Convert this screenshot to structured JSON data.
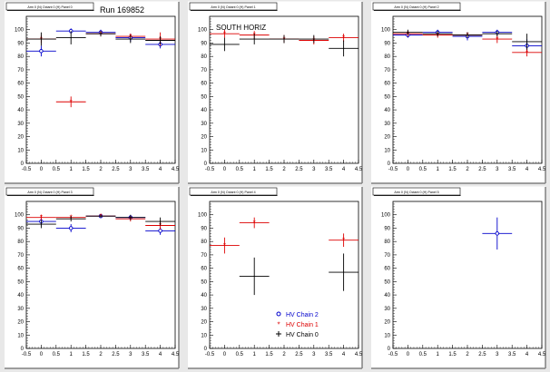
{
  "run_label": "Run 169852",
  "south_label": "SOUTH HORIZ",
  "legend": [
    {
      "label": "HV Chain 2",
      "color": "#0000cc",
      "marker": "circle"
    },
    {
      "label": "HV Chain 1",
      "color": "#dd0000",
      "marker": "star"
    },
    {
      "label": "HV Chain 0",
      "color": "#000000",
      "marker": "plus"
    }
  ],
  "colors": {
    "chain2": "#0000cc",
    "chain1": "#dd0000",
    "chain0": "#000000",
    "background": "#e8e8e8",
    "pad": "#ffffff"
  },
  "chart_data": [
    {
      "type": "scatter",
      "title": "Arm 0 (N) Octant 0 (H) Panel 0",
      "xlim": [
        -0.5,
        4.5
      ],
      "ylim": [
        0,
        110
      ],
      "xticks": [
        -0.5,
        0,
        0.5,
        1,
        1.5,
        2,
        2.5,
        3,
        3.5,
        4,
        4.5
      ],
      "yticks": [
        0,
        10,
        20,
        30,
        40,
        50,
        60,
        70,
        80,
        90,
        100
      ],
      "series": [
        {
          "color": "#0000cc",
          "marker": "circle",
          "points": [
            {
              "x": 0,
              "y": 84,
              "ey": 4
            },
            {
              "x": 1,
              "y": 99,
              "ey": 2
            },
            {
              "x": 2,
              "y": 98,
              "ey": 2
            },
            {
              "x": 3,
              "y": 94,
              "ey": 3
            },
            {
              "x": 4,
              "y": 89,
              "ey": 3
            }
          ]
        },
        {
          "color": "#dd0000",
          "marker": "star",
          "points": [
            {
              "x": 0,
              "y": 93,
              "ey": 3
            },
            {
              "x": 1,
              "y": 46,
              "ey": 4
            },
            {
              "x": 2,
              "y": 97,
              "ey": 2
            },
            {
              "x": 3,
              "y": 95,
              "ey": 2
            },
            {
              "x": 4,
              "y": 93,
              "ey": 5
            }
          ]
        },
        {
          "color": "#000000",
          "marker": "plus",
          "points": [
            {
              "x": 0,
              "y": 93,
              "ey": 5
            },
            {
              "x": 1,
              "y": 94,
              "ey": 5
            },
            {
              "x": 2,
              "y": 97,
              "ey": 2
            },
            {
              "x": 3,
              "y": 93,
              "ey": 3
            },
            {
              "x": 4,
              "y": 92,
              "ey": 3
            }
          ]
        }
      ]
    },
    {
      "type": "scatter",
      "title": "Arm 0 (N) Octant 0 (H) Panel 1",
      "xlim": [
        -0.5,
        4.5
      ],
      "ylim": [
        0,
        110
      ],
      "xticks": [
        -0.5,
        0,
        0.5,
        1,
        1.5,
        2,
        2.5,
        3,
        3.5,
        4,
        4.5
      ],
      "yticks": [
        0,
        10,
        20,
        30,
        40,
        50,
        60,
        70,
        80,
        90,
        100
      ],
      "series": [
        {
          "color": "#dd0000",
          "marker": "star",
          "points": [
            {
              "x": 0,
              "y": 97,
              "ey": 3
            },
            {
              "x": 1,
              "y": 96,
              "ey": 3
            },
            {
              "x": 2,
              "y": 93,
              "ey": 3
            },
            {
              "x": 3,
              "y": 92,
              "ey": 3
            },
            {
              "x": 4,
              "y": 94,
              "ey": 3
            }
          ]
        },
        {
          "color": "#000000",
          "marker": "plus",
          "points": [
            {
              "x": 0,
              "y": 89,
              "ey": 5
            },
            {
              "x": 1,
              "y": 93,
              "ey": 4
            },
            {
              "x": 2,
              "y": 93,
              "ey": 3
            },
            {
              "x": 3,
              "y": 93,
              "ey": 3
            },
            {
              "x": 4,
              "y": 86,
              "ey": 6
            }
          ]
        }
      ]
    },
    {
      "type": "scatter",
      "title": "Arm 0 (N) Octant 0 (H) Panel 2",
      "xlim": [
        -0.5,
        4.5
      ],
      "ylim": [
        0,
        110
      ],
      "xticks": [
        -0.5,
        0,
        0.5,
        1,
        1.5,
        2,
        2.5,
        3,
        3.5,
        4,
        4.5
      ],
      "yticks": [
        0,
        10,
        20,
        30,
        40,
        50,
        60,
        70,
        80,
        90,
        100
      ],
      "series": [
        {
          "color": "#0000cc",
          "marker": "circle",
          "points": [
            {
              "x": 0,
              "y": 96,
              "ey": 2
            },
            {
              "x": 1,
              "y": 98,
              "ey": 2
            },
            {
              "x": 2,
              "y": 95,
              "ey": 3
            },
            {
              "x": 3,
              "y": 98,
              "ey": 2
            },
            {
              "x": 4,
              "y": 88,
              "ey": 5
            }
          ]
        },
        {
          "color": "#dd0000",
          "marker": "star",
          "points": [
            {
              "x": 0,
              "y": 97,
              "ey": 2
            },
            {
              "x": 1,
              "y": 96,
              "ey": 2
            },
            {
              "x": 2,
              "y": 96,
              "ey": 2
            },
            {
              "x": 3,
              "y": 93,
              "ey": 3
            },
            {
              "x": 4,
              "y": 83,
              "ey": 3
            }
          ]
        },
        {
          "color": "#000000",
          "marker": "plus",
          "points": [
            {
              "x": 0,
              "y": 98,
              "ey": 2
            },
            {
              "x": 1,
              "y": 97,
              "ey": 2
            },
            {
              "x": 2,
              "y": 96,
              "ey": 2
            },
            {
              "x": 3,
              "y": 97,
              "ey": 2
            },
            {
              "x": 4,
              "y": 91,
              "ey": 6
            }
          ]
        }
      ]
    },
    {
      "type": "scatter",
      "title": "Arm 0 (N) Octant 0 (H) Panel 3",
      "xlim": [
        -0.5,
        4.5
      ],
      "ylim": [
        0,
        110
      ],
      "xticks": [
        -0.5,
        0,
        0.5,
        1,
        1.5,
        2,
        2.5,
        3,
        3.5,
        4,
        4.5
      ],
      "yticks": [
        0,
        10,
        20,
        30,
        40,
        50,
        60,
        70,
        80,
        90,
        100
      ],
      "series": [
        {
          "color": "#0000cc",
          "marker": "circle",
          "points": [
            {
              "x": 0,
              "y": 95,
              "ey": 3
            },
            {
              "x": 1,
              "y": 90,
              "ey": 3
            },
            {
              "x": 2,
              "y": 99,
              "ey": 1
            },
            {
              "x": 3,
              "y": 98,
              "ey": 1
            },
            {
              "x": 4,
              "y": 88,
              "ey": 3
            }
          ]
        },
        {
          "color": "#dd0000",
          "marker": "star",
          "points": [
            {
              "x": 0,
              "y": 98,
              "ey": 2
            },
            {
              "x": 1,
              "y": 98,
              "ey": 1
            },
            {
              "x": 2,
              "y": 99,
              "ey": 1
            },
            {
              "x": 3,
              "y": 97,
              "ey": 2
            },
            {
              "x": 4,
              "y": 92,
              "ey": 3
            }
          ]
        },
        {
          "color": "#000000",
          "marker": "plus",
          "points": [
            {
              "x": 0,
              "y": 93,
              "ey": 3
            },
            {
              "x": 1,
              "y": 97,
              "ey": 2
            },
            {
              "x": 2,
              "y": 99,
              "ey": 1
            },
            {
              "x": 3,
              "y": 98,
              "ey": 2
            },
            {
              "x": 4,
              "y": 95,
              "ey": 3
            }
          ]
        }
      ]
    },
    {
      "type": "scatter",
      "title": "Arm 0 (N) Octant 0 (H) Panel 4",
      "xlim": [
        -0.5,
        4.5
      ],
      "ylim": [
        0,
        110
      ],
      "xticks": [
        -0.5,
        0,
        0.5,
        1,
        1.5,
        2,
        2.5,
        3,
        3.5,
        4,
        4.5
      ],
      "yticks": [
        0,
        10,
        20,
        30,
        40,
        50,
        60,
        70,
        80,
        90,
        100
      ],
      "series": [
        {
          "color": "#dd0000",
          "marker": "star",
          "points": [
            {
              "x": 0,
              "y": 77,
              "ey": 6
            },
            {
              "x": 1,
              "y": 94,
              "ey": 4
            },
            {
              "x": 4,
              "y": 81,
              "ey": 5
            }
          ]
        },
        {
          "color": "#000000",
          "marker": "plus",
          "points": [
            {
              "x": 1,
              "y": 54,
              "ey": 14
            },
            {
              "x": 4,
              "y": 57,
              "ey": 14
            }
          ]
        }
      ],
      "has_legend": true
    },
    {
      "type": "scatter",
      "title": "Arm 0 (N) Octant 0 (H) Panel 5",
      "xlim": [
        -0.5,
        4.5
      ],
      "ylim": [
        0,
        110
      ],
      "xticks": [
        -0.5,
        0,
        0.5,
        1,
        1.5,
        2,
        2.5,
        3,
        3.5,
        4,
        4.5
      ],
      "yticks": [
        0,
        10,
        20,
        30,
        40,
        50,
        60,
        70,
        80,
        90,
        100
      ],
      "series": [
        {
          "color": "#0000cc",
          "marker": "circle",
          "points": [
            {
              "x": 3,
              "y": 86,
              "ey": 12
            }
          ]
        }
      ]
    }
  ]
}
